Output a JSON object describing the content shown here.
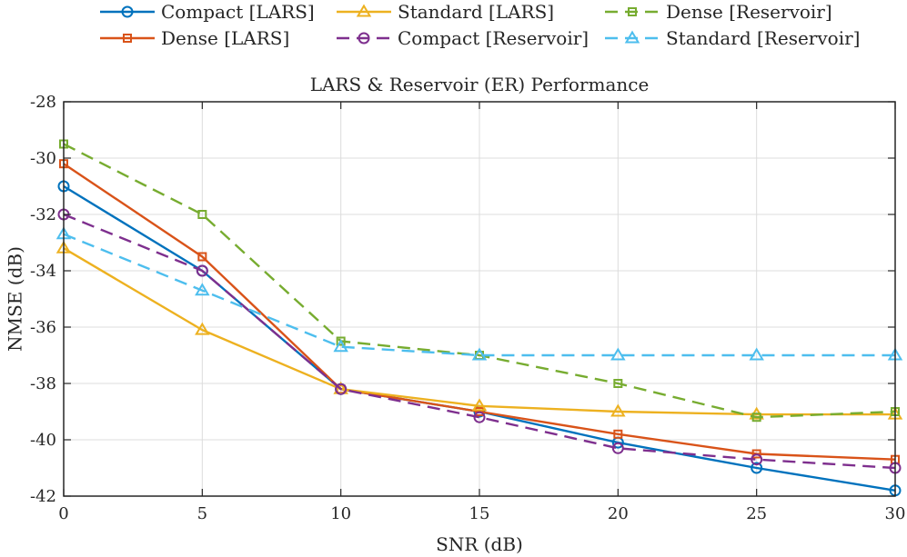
{
  "chart_data": {
    "type": "line",
    "title": "LARS & Reservoir (ER) Performance",
    "xlabel": "SNR (dB)",
    "ylabel": "NMSE (dB)",
    "x": [
      0,
      5,
      10,
      15,
      20,
      25,
      30
    ],
    "xlim": [
      0,
      30
    ],
    "ylim": [
      -42,
      -28
    ],
    "xticks": [
      0,
      5,
      10,
      15,
      20,
      25,
      30
    ],
    "yticks": [
      -42,
      -40,
      -38,
      -36,
      -34,
      -32,
      -30,
      -28
    ],
    "xtick_labels": [
      "0",
      "5",
      "10",
      "15",
      "20",
      "25",
      "30"
    ],
    "ytick_labels": [
      "-42",
      "-40",
      "-38",
      "-36",
      "-34",
      "-32",
      "-30",
      "-28"
    ],
    "grid": true,
    "legend_position": "top, outside plot, 3 columns",
    "series": [
      {
        "name": "Compact [LARS]",
        "color": "#0072BD",
        "dash": "solid",
        "marker": "circle",
        "values": [
          -31.0,
          -34.0,
          -38.2,
          -39.0,
          -40.1,
          -41.0,
          -41.8
        ]
      },
      {
        "name": "Dense [LARS]",
        "color": "#D95319",
        "dash": "solid",
        "marker": "square",
        "values": [
          -30.2,
          -33.5,
          -38.2,
          -39.0,
          -39.8,
          -40.5,
          -40.7
        ]
      },
      {
        "name": "Standard [LARS]",
        "color": "#EDB120",
        "dash": "solid",
        "marker": "triangle",
        "values": [
          -33.2,
          -36.1,
          -38.2,
          -38.8,
          -39.0,
          -39.1,
          -39.1
        ]
      },
      {
        "name": "Compact [Reservoir]",
        "color": "#7E2F8E",
        "dash": "dashed",
        "marker": "circle",
        "values": [
          -32.0,
          -34.0,
          -38.2,
          -39.2,
          -40.3,
          -40.7,
          -41.0
        ]
      },
      {
        "name": "Dense [Reservoir]",
        "color": "#77AC30",
        "dash": "dashed",
        "marker": "square",
        "values": [
          -29.5,
          -32.0,
          -36.5,
          -37.0,
          -38.0,
          -39.2,
          -39.0
        ]
      },
      {
        "name": "Standard [Reservoir]",
        "color": "#4DBEEE",
        "dash": "dashed",
        "marker": "triangle",
        "values": [
          -32.7,
          -34.7,
          -36.7,
          -37.0,
          -37.0,
          -37.0,
          -37.0
        ]
      }
    ]
  }
}
